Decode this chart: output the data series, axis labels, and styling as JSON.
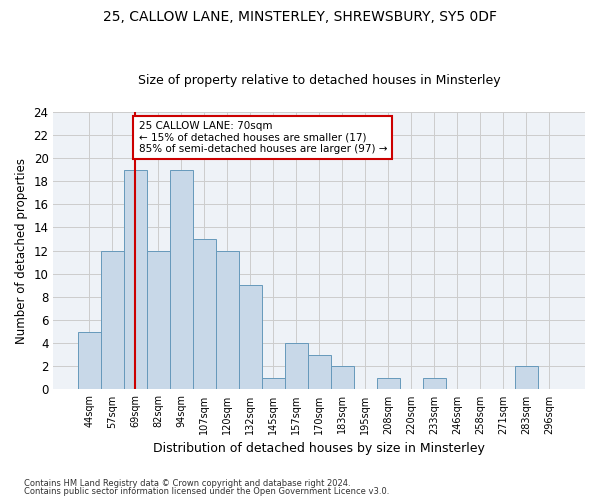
{
  "title1": "25, CALLOW LANE, MINSTERLEY, SHREWSBURY, SY5 0DF",
  "title2": "Size of property relative to detached houses in Minsterley",
  "xlabel": "Distribution of detached houses by size in Minsterley",
  "ylabel": "Number of detached properties",
  "bar_color": "#c8d8e8",
  "bar_edge_color": "#6699bb",
  "categories": [
    "44sqm",
    "57sqm",
    "69sqm",
    "82sqm",
    "94sqm",
    "107sqm",
    "120sqm",
    "132sqm",
    "145sqm",
    "157sqm",
    "170sqm",
    "183sqm",
    "195sqm",
    "208sqm",
    "220sqm",
    "233sqm",
    "246sqm",
    "258sqm",
    "271sqm",
    "283sqm",
    "296sqm"
  ],
  "values": [
    5,
    12,
    19,
    12,
    19,
    13,
    12,
    9,
    1,
    4,
    3,
    2,
    0,
    1,
    0,
    1,
    0,
    0,
    0,
    2,
    0
  ],
  "vline_x": 2,
  "vline_color": "#cc0000",
  "annotation_line1": "25 CALLOW LANE: 70sqm",
  "annotation_line2": "← 15% of detached houses are smaller (17)",
  "annotation_line3": "85% of semi-detached houses are larger (97) →",
  "annotation_box_color": "#ffffff",
  "annotation_box_edge": "#cc0000",
  "ylim": [
    0,
    24
  ],
  "yticks": [
    0,
    2,
    4,
    6,
    8,
    10,
    12,
    14,
    16,
    18,
    20,
    22,
    24
  ],
  "footer1": "Contains HM Land Registry data © Crown copyright and database right 2024.",
  "footer2": "Contains public sector information licensed under the Open Government Licence v3.0.",
  "bg_color": "#eef2f7"
}
